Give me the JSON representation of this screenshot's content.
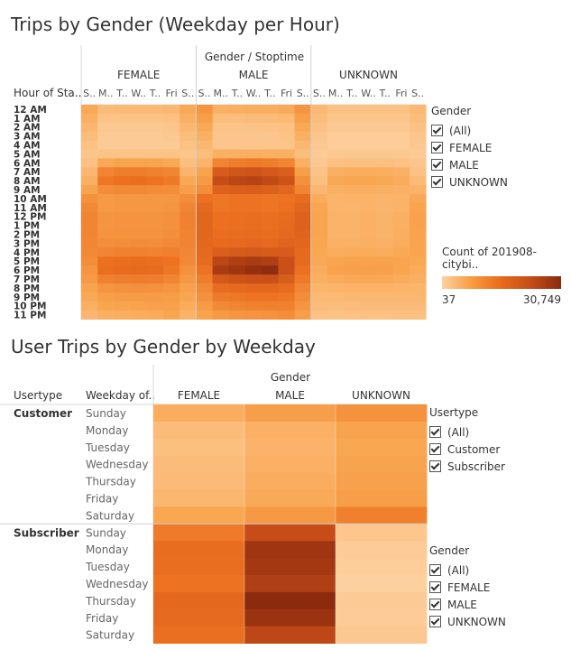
{
  "top": {
    "title": "Trips by Gender (Weekday per Hour)",
    "header_group": "Gender / Stoptime",
    "row_header": "Hour of Sta..",
    "genders": [
      "FEMALE",
      "MALE",
      "UNKNOWN"
    ],
    "day_labels": [
      "S..",
      "M..",
      "T..",
      "W..",
      "T..",
      "Fri",
      "S.."
    ],
    "hours": [
      "12 AM",
      "1 AM",
      "2 AM",
      "3 AM",
      "4 AM",
      "5 AM",
      "6 AM",
      "7 AM",
      "8 AM",
      "9 AM",
      "10 AM",
      "11 AM",
      "12 PM",
      "1 PM",
      "2 PM",
      "3 PM",
      "4 PM",
      "5 PM",
      "6 PM",
      "7 PM",
      "8 PM",
      "9 PM",
      "10 PM",
      "11 PM"
    ],
    "filter": {
      "title": "Gender",
      "items": [
        "(All)",
        "FEMALE",
        "MALE",
        "UNKNOWN"
      ]
    },
    "legend": {
      "title": "Count of 201908-citybi..",
      "min": "37",
      "max": "30,749"
    }
  },
  "bottom": {
    "title": "User Trips by Gender by Weekday",
    "header_group": "Gender",
    "col_usertype": "Usertype",
    "col_weekday": "Weekday of..",
    "genders": [
      "FEMALE",
      "MALE",
      "UNKNOWN"
    ],
    "usertypes": [
      "Customer",
      "Subscriber"
    ],
    "weekdays": [
      "Sunday",
      "Monday",
      "Tuesday",
      "Wednesday",
      "Thursday",
      "Friday",
      "Saturday"
    ],
    "filter_usertype": {
      "title": "Usertype",
      "items": [
        "(All)",
        "Customer",
        "Subscriber"
      ]
    },
    "filter_gender": {
      "title": "Gender",
      "items": [
        "(All)",
        "FEMALE",
        "MALE",
        "UNKNOWN"
      ]
    }
  },
  "chart_data": [
    {
      "type": "heatmap",
      "title": "Trips by Gender (Weekday per Hour)",
      "xlabel": "Gender / Stoptime",
      "ylabel": "Hour of Sta..",
      "color_range": [
        37,
        30749
      ],
      "columns": [
        "FEMALE S..",
        "FEMALE M..",
        "FEMALE T..",
        "FEMALE W..",
        "FEMALE T..",
        "FEMALE Fri",
        "FEMALE S..",
        "MALE S..",
        "MALE M..",
        "MALE T..",
        "MALE W..",
        "MALE T..",
        "MALE Fri",
        "MALE S..",
        "UNKNOWN S..",
        "UNKNOWN M..",
        "UNKNOWN T..",
        "UNKNOWN W..",
        "UNKNOWN T..",
        "UNKNOWN Fri",
        "UNKNOWN S.."
      ],
      "rows": [
        "12 AM",
        "1 AM",
        "2 AM",
        "3 AM",
        "4 AM",
        "5 AM",
        "6 AM",
        "7 AM",
        "8 AM",
        "9 AM",
        "10 AM",
        "11 AM",
        "12 PM",
        "1 PM",
        "2 PM",
        "3 PM",
        "4 PM",
        "5 PM",
        "6 PM",
        "7 PM",
        "8 PM",
        "9 PM",
        "10 PM",
        "11 PM"
      ],
      "values": [
        [
          2000,
          800,
          900,
          900,
          900,
          1000,
          2000,
          4000,
          1500,
          1600,
          1700,
          1700,
          1900,
          4000,
          900,
          500,
          500,
          500,
          500,
          500,
          900
        ],
        [
          1500,
          400,
          400,
          400,
          400,
          500,
          1500,
          3000,
          700,
          700,
          800,
          800,
          900,
          3000,
          700,
          300,
          300,
          300,
          300,
          300,
          700
        ],
        [
          1000,
          200,
          200,
          200,
          200,
          300,
          1000,
          2000,
          400,
          400,
          400,
          500,
          500,
          2000,
          500,
          200,
          200,
          200,
          200,
          200,
          500
        ],
        [
          700,
          150,
          150,
          150,
          150,
          200,
          700,
          1500,
          300,
          300,
          300,
          300,
          400,
          1500,
          300,
          100,
          100,
          100,
          100,
          100,
          300
        ],
        [
          500,
          150,
          150,
          150,
          150,
          150,
          500,
          1000,
          300,
          300,
          300,
          300,
          300,
          1000,
          200,
          100,
          100,
          100,
          100,
          100,
          200
        ],
        [
          300,
          400,
          400,
          400,
          400,
          400,
          300,
          700,
          1500,
          1500,
          1600,
          1500,
          1500,
          700,
          150,
          200,
          200,
          200,
          200,
          200,
          150
        ],
        [
          500,
          2000,
          2500,
          2500,
          2300,
          2000,
          600,
          1200,
          6000,
          7000,
          7500,
          7000,
          6000,
          1500,
          200,
          500,
          600,
          600,
          600,
          500,
          300
        ],
        [
          1000,
          6000,
          7000,
          7000,
          6500,
          6000,
          1200,
          2500,
          15000,
          17000,
          17500,
          16000,
          14000,
          3000,
          400,
          1500,
          1700,
          1700,
          1600,
          1400,
          500
        ],
        [
          1500,
          8000,
          9000,
          9500,
          8500,
          7500,
          2000,
          3500,
          20000,
          22000,
          22500,
          21000,
          18000,
          4500,
          600,
          2000,
          2200,
          2200,
          2100,
          1800,
          800
        ],
        [
          2500,
          5000,
          5500,
          5500,
          5200,
          5000,
          3000,
          5000,
          13000,
          14000,
          14500,
          13500,
          12000,
          6000,
          1000,
          1500,
          1600,
          1600,
          1500,
          1400,
          1300
        ],
        [
          4500,
          3500,
          3800,
          3800,
          3700,
          3800,
          5000,
          9000,
          8000,
          8500,
          8500,
          8200,
          8500,
          10000,
          1800,
          1200,
          1300,
          1300,
          1200,
          1300,
          2000
        ],
        [
          5500,
          3500,
          3800,
          3800,
          3700,
          4000,
          6000,
          11000,
          8000,
          8500,
          8600,
          8300,
          9000,
          12000,
          2200,
          1200,
          1200,
          1300,
          1200,
          1300,
          2400
        ],
        [
          6000,
          4000,
          4200,
          4200,
          4100,
          4500,
          6500,
          12000,
          9000,
          9300,
          9500,
          9200,
          10000,
          13000,
          2300,
          1300,
          1300,
          1400,
          1300,
          1500,
          2600
        ],
        [
          6000,
          4000,
          4200,
          4200,
          4100,
          4500,
          6500,
          12000,
          9000,
          9300,
          9500,
          9200,
          10500,
          13000,
          2300,
          1300,
          1300,
          1400,
          1300,
          1500,
          2600
        ],
        [
          6000,
          4200,
          4400,
          4400,
          4300,
          4800,
          6300,
          12000,
          9500,
          9800,
          10000,
          9800,
          11000,
          12500,
          2300,
          1300,
          1300,
          1400,
          1300,
          1600,
          2500
        ],
        [
          5800,
          4800,
          5000,
          5100,
          5000,
          5500,
          6200,
          11500,
          10500,
          11000,
          11500,
          11000,
          12500,
          12000,
          2200,
          1400,
          1400,
          1500,
          1400,
          1700,
          2400
        ],
        [
          5500,
          6000,
          6500,
          6600,
          6400,
          6800,
          5800,
          11000,
          14000,
          15000,
          15500,
          15000,
          15000,
          11000,
          2100,
          1700,
          1800,
          1800,
          1700,
          2000,
          2300
        ],
        [
          5000,
          9000,
          9500,
          9800,
          9300,
          8500,
          5500,
          10000,
          22000,
          24000,
          25000,
          24000,
          19000,
          10500,
          2000,
          2400,
          2500,
          2600,
          2500,
          2400,
          2100
        ],
        [
          4000,
          9500,
          10000,
          10500,
          10000,
          8000,
          4500,
          8500,
          25000,
          27000,
          29000,
          30000,
          19000,
          9000,
          1700,
          2600,
          2800,
          2900,
          2800,
          2300,
          1800
        ],
        [
          3500,
          6500,
          7000,
          7200,
          7000,
          6000,
          3800,
          7000,
          16000,
          18000,
          19000,
          19000,
          14500,
          7500,
          1500,
          1800,
          2000,
          2100,
          2000,
          1800,
          1500
        ],
        [
          2500,
          4000,
          4500,
          4600,
          4500,
          4000,
          2800,
          5500,
          10000,
          11000,
          11500,
          11500,
          10000,
          6000,
          1100,
          1200,
          1300,
          1300,
          1300,
          1200,
          1100
        ],
        [
          2000,
          3000,
          3300,
          3400,
          3400,
          3200,
          2200,
          4500,
          7500,
          8000,
          8500,
          8500,
          8000,
          5000,
          900,
          900,
          1000,
          1000,
          1000,
          1000,
          1000
        ],
        [
          1500,
          2300,
          2500,
          2600,
          2700,
          2700,
          1800,
          3500,
          5500,
          6000,
          6500,
          6500,
          6500,
          4000,
          700,
          700,
          700,
          800,
          800,
          800,
          800
        ],
        [
          1000,
          1500,
          1600,
          1700,
          1800,
          2200,
          1300,
          2500,
          3500,
          4000,
          4200,
          4400,
          5000,
          3000,
          500,
          400,
          500,
          500,
          500,
          600,
          600
        ]
      ]
    },
    {
      "type": "heatmap",
      "title": "User Trips by Gender by Weekday",
      "xlabel": "Gender",
      "columns": [
        "FEMALE",
        "MALE",
        "UNKNOWN"
      ],
      "row_groups": [
        "Customer",
        "Subscriber"
      ],
      "rows": [
        "Sunday",
        "Monday",
        "Tuesday",
        "Wednesday",
        "Thursday",
        "Friday",
        "Saturday"
      ],
      "values": {
        "Customer": [
          [
            12000,
            17000,
            22000
          ],
          [
            8000,
            11000,
            15000
          ],
          [
            7500,
            10500,
            14000
          ],
          [
            8000,
            11000,
            15000
          ],
          [
            8500,
            12000,
            16000
          ],
          [
            9500,
            13000,
            17000
          ],
          [
            14000,
            19000,
            30000
          ]
        ],
        "Subscriber": [
          [
            32000,
            70000,
            6000
          ],
          [
            40000,
            90000,
            5000
          ],
          [
            39000,
            88000,
            4800
          ],
          [
            36000,
            82000,
            4500
          ],
          [
            44000,
            100000,
            5200
          ],
          [
            42000,
            92000,
            5000
          ],
          [
            38000,
            75000,
            5500
          ]
        ]
      }
    }
  ]
}
